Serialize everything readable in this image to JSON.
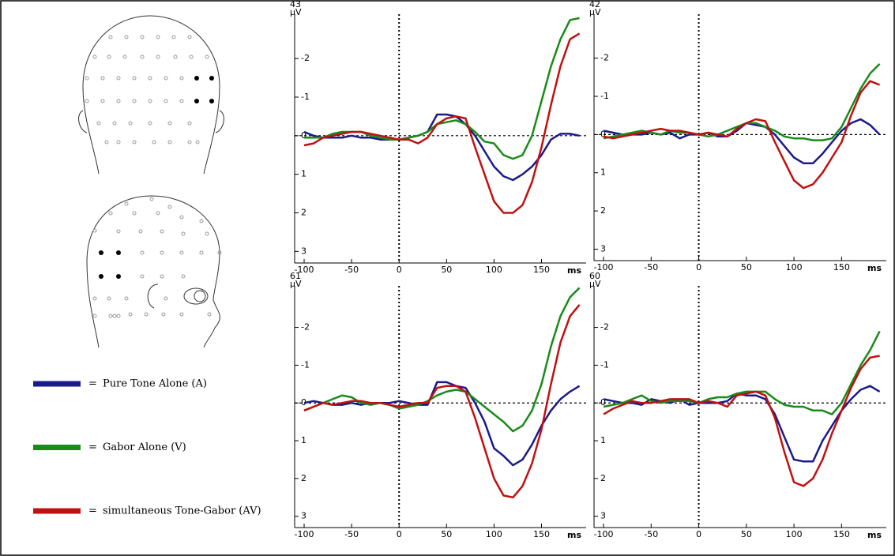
{
  "legend_separator": "=",
  "chart_data": [
    {
      "type": "line",
      "title": "43",
      "y_label": "µV",
      "x_label": "ms",
      "y_inverted": true,
      "zero_lines": true,
      "xlim": [
        -110,
        197
      ],
      "ylim": [
        -3.15,
        3.3
      ],
      "xticks": [
        -100,
        -50,
        0,
        50,
        100,
        150
      ],
      "yticks": [
        -2,
        -1,
        0,
        1,
        2,
        3
      ],
      "x": [
        -100,
        -90,
        -80,
        -70,
        -60,
        -50,
        -40,
        -30,
        -20,
        -10,
        0,
        10,
        20,
        30,
        40,
        50,
        60,
        70,
        80,
        90,
        100,
        110,
        120,
        130,
        140,
        150,
        160,
        170,
        180,
        190
      ],
      "series": [
        {
          "name": "Pure Tone Alone (A)",
          "color": "#1a1a8c",
          "values": [
            -0.1,
            0,
            0.05,
            0.05,
            0.05,
            0,
            0.05,
            0.05,
            0.1,
            0.1,
            0.1,
            0.05,
            0,
            -0.1,
            -0.55,
            -0.55,
            -0.5,
            -0.3,
            0,
            0.4,
            0.8,
            1.05,
            1.15,
            1.0,
            0.8,
            0.5,
            0.1,
            -0.05,
            -0.05,
            0
          ]
        },
        {
          "name": "Gabor Alone (V)",
          "color": "#1a8a1a",
          "values": [
            0.05,
            0.05,
            0.05,
            -0.05,
            -0.1,
            -0.1,
            -0.1,
            0,
            0.05,
            0.1,
            0.1,
            0.05,
            0,
            -0.1,
            -0.3,
            -0.35,
            -0.4,
            -0.3,
            -0.1,
            0.15,
            0.2,
            0.5,
            0.6,
            0.5,
            0,
            -0.9,
            -1.8,
            -2.5,
            -3.0,
            -3.05
          ]
        },
        {
          "name": "simultaneous Tone-Gabor (AV)",
          "color": "#c01010",
          "values": [
            0.25,
            0.2,
            0.05,
            0,
            -0.05,
            -0.1,
            -0.1,
            -0.05,
            0,
            0.05,
            0.1,
            0.1,
            0.2,
            0.05,
            -0.3,
            -0.45,
            -0.5,
            -0.45,
            0.3,
            1.0,
            1.7,
            2.0,
            2.0,
            1.8,
            1.2,
            0.3,
            -0.8,
            -1.8,
            -2.5,
            -2.65
          ]
        }
      ]
    },
    {
      "type": "line",
      "title": "42",
      "y_label": "µV",
      "x_label": "ms",
      "y_inverted": true,
      "zero_lines": true,
      "xlim": [
        -110,
        197
      ],
      "ylim": [
        -3.15,
        3.3
      ],
      "xticks": [
        -100,
        -50,
        0,
        50,
        100,
        150
      ],
      "yticks": [
        -2,
        -1,
        0,
        1,
        2,
        3
      ],
      "x": [
        -100,
        -90,
        -80,
        -70,
        -60,
        -50,
        -40,
        -30,
        -20,
        -10,
        0,
        10,
        20,
        30,
        40,
        50,
        60,
        70,
        80,
        90,
        100,
        110,
        120,
        130,
        140,
        150,
        160,
        170,
        180,
        190
      ],
      "series": [
        {
          "name": "Pure Tone Alone (A)",
          "color": "#1a1a8c",
          "values": [
            -0.1,
            -0.05,
            0,
            0,
            0,
            -0.05,
            0,
            -0.05,
            0.1,
            0,
            0,
            -0.05,
            0.05,
            0.05,
            -0.1,
            -0.3,
            -0.25,
            -0.2,
            0,
            0.3,
            0.6,
            0.75,
            0.75,
            0.5,
            0.2,
            -0.1,
            -0.3,
            -0.4,
            -0.25,
            0
          ]
        },
        {
          "name": "Gabor Alone (V)",
          "color": "#1a8a1a",
          "values": [
            0.1,
            0.05,
            0,
            -0.05,
            -0.1,
            -0.05,
            0,
            -0.1,
            -0.05,
            -0.05,
            0,
            0.05,
            0,
            -0.1,
            -0.2,
            -0.3,
            -0.3,
            -0.2,
            -0.1,
            0.05,
            0.1,
            0.1,
            0.15,
            0.15,
            0.1,
            -0.2,
            -0.7,
            -1.2,
            -1.6,
            -1.85
          ]
        },
        {
          "name": "simultaneous Tone-Gabor (AV)",
          "color": "#c01010",
          "values": [
            0.05,
            0.1,
            0.05,
            0,
            -0.05,
            -0.1,
            -0.15,
            -0.1,
            -0.1,
            -0.05,
            0,
            -0.05,
            0,
            0.05,
            -0.15,
            -0.3,
            -0.4,
            -0.35,
            0.2,
            0.7,
            1.2,
            1.4,
            1.3,
            1.0,
            0.6,
            0.2,
            -0.5,
            -1.1,
            -1.4,
            -1.3
          ]
        }
      ]
    },
    {
      "type": "line",
      "title": "61",
      "y_label": "µV",
      "x_label": "ms",
      "y_inverted": true,
      "zero_lines": true,
      "xlim": [
        -110,
        197
      ],
      "ylim": [
        -3.1,
        3.3
      ],
      "xticks": [
        -100,
        -50,
        0,
        50,
        100,
        150
      ],
      "yticks": [
        -2,
        -1,
        0,
        1,
        2,
        3
      ],
      "x": [
        -100,
        -90,
        -80,
        -70,
        -60,
        -50,
        -40,
        -30,
        -20,
        -10,
        0,
        10,
        20,
        30,
        40,
        50,
        60,
        70,
        80,
        90,
        100,
        110,
        120,
        130,
        140,
        150,
        160,
        170,
        180,
        190
      ],
      "series": [
        {
          "name": "Pure Tone Alone (A)",
          "color": "#1a1a8c",
          "values": [
            0,
            -0.05,
            0,
            0.05,
            0.05,
            0,
            0.05,
            0,
            0,
            0,
            -0.05,
            0,
            0.05,
            0.05,
            -0.55,
            -0.55,
            -0.45,
            -0.4,
            0,
            0.5,
            1.2,
            1.4,
            1.65,
            1.5,
            1.1,
            0.6,
            0.2,
            -0.1,
            -0.3,
            -0.45
          ]
        },
        {
          "name": "Gabor Alone (V)",
          "color": "#1a8a1a",
          "values": [
            0.2,
            0.1,
            0,
            -0.1,
            -0.2,
            -0.15,
            0,
            0.05,
            0,
            0.05,
            0.15,
            0.1,
            0.05,
            -0.05,
            -0.2,
            -0.3,
            -0.35,
            -0.3,
            -0.1,
            0.1,
            0.3,
            0.5,
            0.75,
            0.6,
            0.2,
            -0.5,
            -1.5,
            -2.3,
            -2.8,
            -3.05
          ]
        },
        {
          "name": "simultaneous Tone-Gabor (AV)",
          "color": "#c01010",
          "values": [
            0.2,
            0.1,
            0,
            0.05,
            0,
            -0.05,
            -0.05,
            0,
            0,
            0.05,
            0.1,
            0.05,
            0,
            0,
            -0.4,
            -0.45,
            -0.45,
            -0.3,
            0.4,
            1.2,
            2.0,
            2.45,
            2.5,
            2.2,
            1.6,
            0.7,
            -0.5,
            -1.6,
            -2.3,
            -2.6
          ]
        }
      ]
    },
    {
      "type": "line",
      "title": "60",
      "y_label": "µV",
      "x_label": "ms",
      "y_inverted": true,
      "zero_lines": true,
      "xlim": [
        -110,
        197
      ],
      "ylim": [
        -3.1,
        3.3
      ],
      "xticks": [
        -100,
        -50,
        0,
        50,
        100,
        150
      ],
      "yticks": [
        -2,
        -1,
        0,
        1,
        2,
        3
      ],
      "x": [
        -100,
        -90,
        -80,
        -70,
        -60,
        -50,
        -40,
        -30,
        -20,
        -10,
        0,
        10,
        20,
        30,
        40,
        50,
        60,
        70,
        80,
        90,
        100,
        110,
        120,
        130,
        140,
        150,
        160,
        170,
        180,
        190
      ],
      "series": [
        {
          "name": "Pure Tone Alone (A)",
          "color": "#1a1a8c",
          "values": [
            -0.1,
            -0.05,
            0,
            0,
            0.05,
            -0.1,
            -0.05,
            0,
            -0.1,
            0.05,
            0,
            0,
            0,
            -0.05,
            -0.25,
            -0.2,
            -0.2,
            -0.1,
            0.3,
            0.9,
            1.5,
            1.55,
            1.55,
            1.0,
            0.6,
            0.2,
            -0.1,
            -0.35,
            -0.45,
            -0.3
          ]
        },
        {
          "name": "Gabor Alone (V)",
          "color": "#1a8a1a",
          "values": [
            0.1,
            0.05,
            0,
            -0.1,
            -0.2,
            -0.05,
            0,
            -0.05,
            -0.05,
            -0.05,
            0,
            -0.1,
            -0.15,
            -0.15,
            -0.25,
            -0.3,
            -0.3,
            -0.3,
            -0.1,
            0.05,
            0.1,
            0.1,
            0.2,
            0.2,
            0.3,
            0,
            -0.5,
            -1.0,
            -1.4,
            -1.9
          ]
        },
        {
          "name": "simultaneous Tone-Gabor (AV)",
          "color": "#c01010",
          "values": [
            0.3,
            0.15,
            0.05,
            -0.05,
            0,
            0,
            -0.05,
            -0.1,
            -0.1,
            -0.1,
            0,
            -0.05,
            0,
            0.1,
            -0.2,
            -0.25,
            -0.3,
            -0.2,
            0.4,
            1.3,
            2.1,
            2.2,
            2.0,
            1.5,
            0.8,
            0.2,
            -0.4,
            -0.9,
            -1.2,
            -1.25
          ]
        }
      ]
    }
  ]
}
